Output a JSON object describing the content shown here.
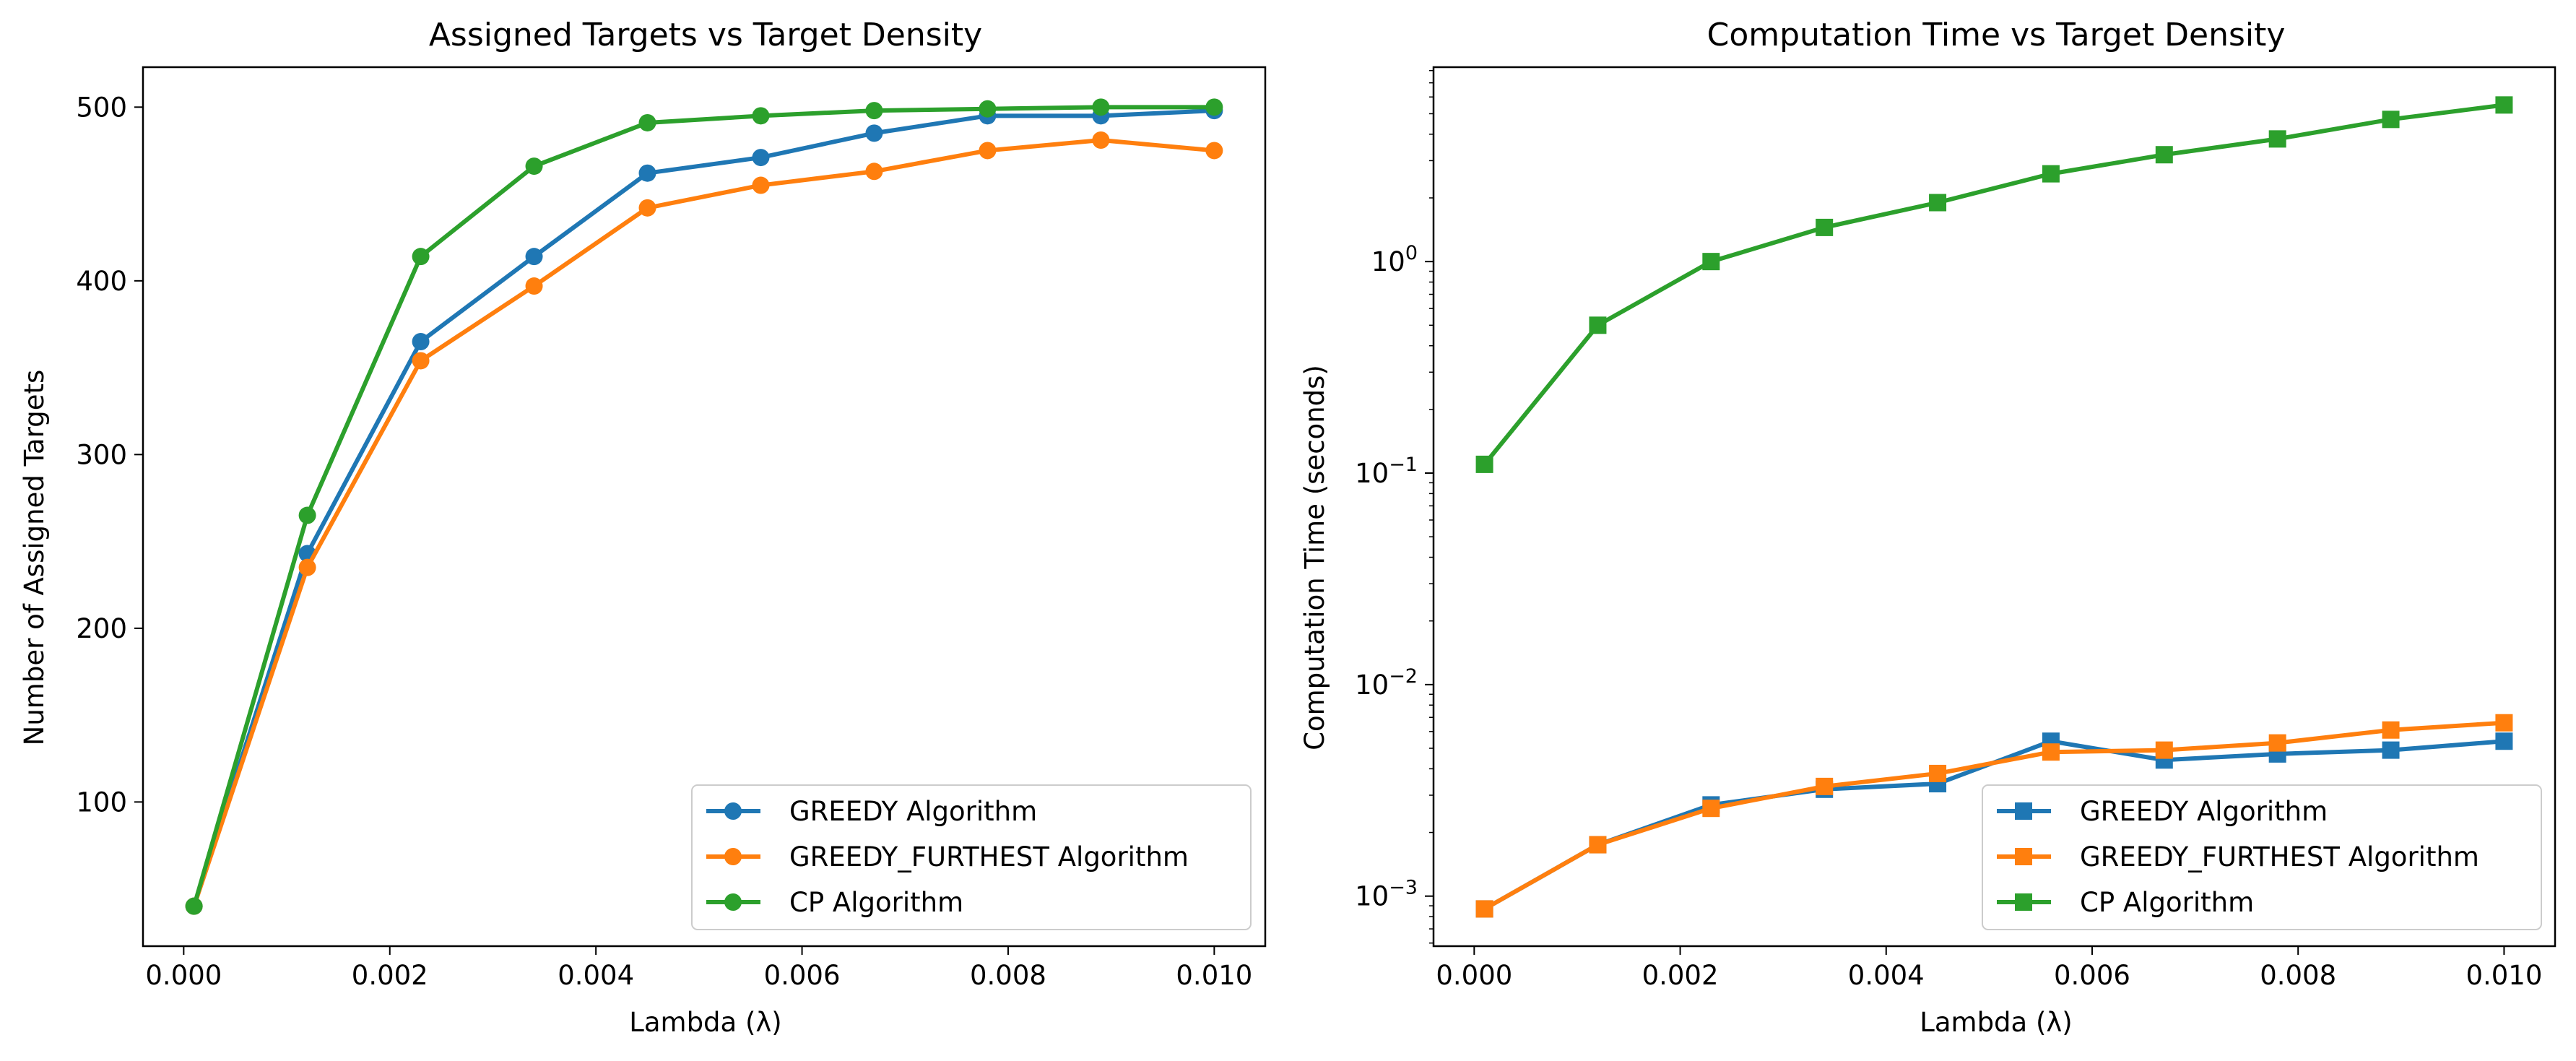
{
  "colors": {
    "greedy": "#1f77b4",
    "greedy_furthest": "#ff7f0e",
    "cp": "#2ca02c",
    "grid": "#e6e6e6"
  },
  "chart_data": [
    {
      "type": "line",
      "title": "Assigned Targets vs Target Density",
      "xlabel": "Lambda (λ)",
      "ylabel": "Number of Assigned Targets",
      "yscale": "linear",
      "marker": "circle",
      "grid": true,
      "legend_position": "lower-right",
      "xlim": [
        -0.000395,
        0.010495
      ],
      "ylim": [
        17,
        523
      ],
      "xticks": [
        0.0,
        0.002,
        0.004,
        0.006,
        0.008,
        0.01
      ],
      "xtick_labels": [
        "0.000",
        "0.002",
        "0.004",
        "0.006",
        "0.008",
        "0.010"
      ],
      "yticks": [
        100,
        200,
        300,
        400,
        500
      ],
      "ytick_labels": [
        "100",
        "200",
        "300",
        "400",
        "500"
      ],
      "x": [
        0.0001,
        0.0012,
        0.0023,
        0.0034,
        0.0045,
        0.0056,
        0.0067,
        0.0078,
        0.0089,
        0.01
      ],
      "series": [
        {
          "name": "GREEDY Algorithm",
          "color_key": "greedy",
          "values": [
            40,
            243,
            365,
            414,
            462,
            471,
            485,
            495,
            495,
            498
          ]
        },
        {
          "name": "GREEDY_FURTHEST Algorithm",
          "color_key": "greedy_furthest",
          "values": [
            40,
            235,
            354,
            397,
            442,
            455,
            463,
            475,
            481,
            475
          ]
        },
        {
          "name": "CP Algorithm",
          "color_key": "cp",
          "values": [
            40,
            265,
            414,
            466,
            491,
            495,
            498,
            499,
            500,
            500
          ]
        }
      ]
    },
    {
      "type": "line",
      "title": "Computation Time vs Target Density",
      "xlabel": "Lambda (λ)",
      "ylabel": "Computation Time (seconds)",
      "yscale": "log",
      "marker": "square",
      "grid": true,
      "legend_position": "lower-right",
      "xlim": [
        -0.000395,
        0.010495
      ],
      "ylim": [
        0.00058,
        8.3
      ],
      "xticks": [
        0.0,
        0.002,
        0.004,
        0.006,
        0.008,
        0.01
      ],
      "xtick_labels": [
        "0.000",
        "0.002",
        "0.004",
        "0.006",
        "0.008",
        "0.010"
      ],
      "yticks": [
        0.001,
        0.01,
        0.1,
        1
      ],
      "ytick_labels": [
        {
          "base": "10",
          "exp": "−3"
        },
        {
          "base": "10",
          "exp": "−2"
        },
        {
          "base": "10",
          "exp": "−1"
        },
        {
          "base": "10",
          "exp": "0"
        }
      ],
      "x": [
        0.0001,
        0.0012,
        0.0023,
        0.0034,
        0.0045,
        0.0056,
        0.0067,
        0.0078,
        0.0089,
        0.01
      ],
      "series": [
        {
          "name": "GREEDY Algorithm",
          "color_key": "greedy",
          "values": [
            0.00087,
            0.00175,
            0.0027,
            0.0032,
            0.0034,
            0.0054,
            0.0044,
            0.0047,
            0.0049,
            0.0054
          ]
        },
        {
          "name": "GREEDY_FURTHEST Algorithm",
          "color_key": "greedy_furthest",
          "values": [
            0.00087,
            0.00175,
            0.0026,
            0.0033,
            0.0038,
            0.0048,
            0.0049,
            0.0053,
            0.0061,
            0.0066
          ]
        },
        {
          "name": "CP Algorithm",
          "color_key": "cp",
          "values": [
            0.11,
            0.5,
            1.0,
            1.45,
            1.9,
            2.6,
            3.2,
            3.8,
            4.7,
            5.5
          ]
        }
      ]
    }
  ]
}
